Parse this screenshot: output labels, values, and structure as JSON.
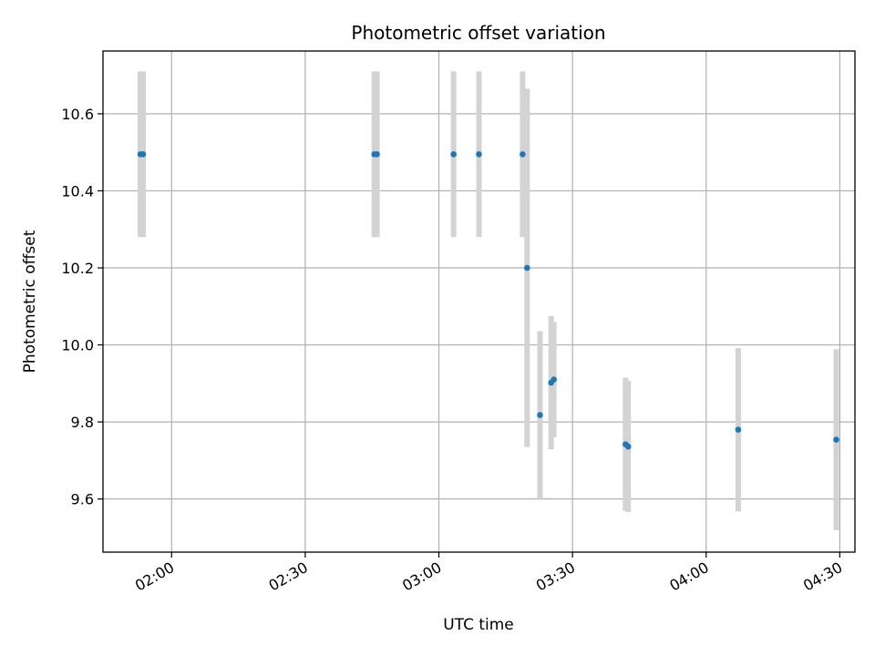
{
  "chart_data": {
    "type": "scatter",
    "title": "Photometric offset variation",
    "xlabel": "UTC time",
    "ylabel": "Photometric offset",
    "x_axis": {
      "kind": "time",
      "range": [
        "01:44:36",
        "04:33:24"
      ],
      "ticks": [
        "02:00",
        "02:30",
        "03:00",
        "03:30",
        "04:00",
        "04:30"
      ]
    },
    "y_axis": {
      "range": [
        9.462,
        10.763
      ],
      "ticks": [
        "9.6",
        "9.8",
        "10.0",
        "10.2",
        "10.4",
        "10.6"
      ]
    },
    "grid": true,
    "colors": {
      "point": "#1f77b4",
      "errorbar": "#d3d3d3",
      "grid": "#b0b0b0"
    },
    "points": [
      {
        "time": "01:53:00",
        "y": 10.495,
        "err": 0.215
      },
      {
        "time": "01:53:36",
        "y": 10.495,
        "err": 0.215
      },
      {
        "time": "02:45:30",
        "y": 10.495,
        "err": 0.215
      },
      {
        "time": "02:46:06",
        "y": 10.495,
        "err": 0.215
      },
      {
        "time": "03:03:18",
        "y": 10.495,
        "err": 0.215
      },
      {
        "time": "03:09:00",
        "y": 10.495,
        "err": 0.215
      },
      {
        "time": "03:18:48",
        "y": 10.495,
        "err": 0.215
      },
      {
        "time": "03:19:48",
        "y": 10.2,
        "err": 0.465
      },
      {
        "time": "03:22:42",
        "y": 9.818,
        "err": 0.218
      },
      {
        "time": "03:25:12",
        "y": 9.902,
        "err": 0.173
      },
      {
        "time": "03:25:48",
        "y": 9.91,
        "err": 0.15
      },
      {
        "time": "03:41:54",
        "y": 9.742,
        "err": 0.173
      },
      {
        "time": "03:42:30",
        "y": 9.736,
        "err": 0.17
      },
      {
        "time": "04:07:12",
        "y": 9.78,
        "err": 0.212
      },
      {
        "time": "04:29:12",
        "y": 9.754,
        "err": 0.235
      }
    ]
  }
}
